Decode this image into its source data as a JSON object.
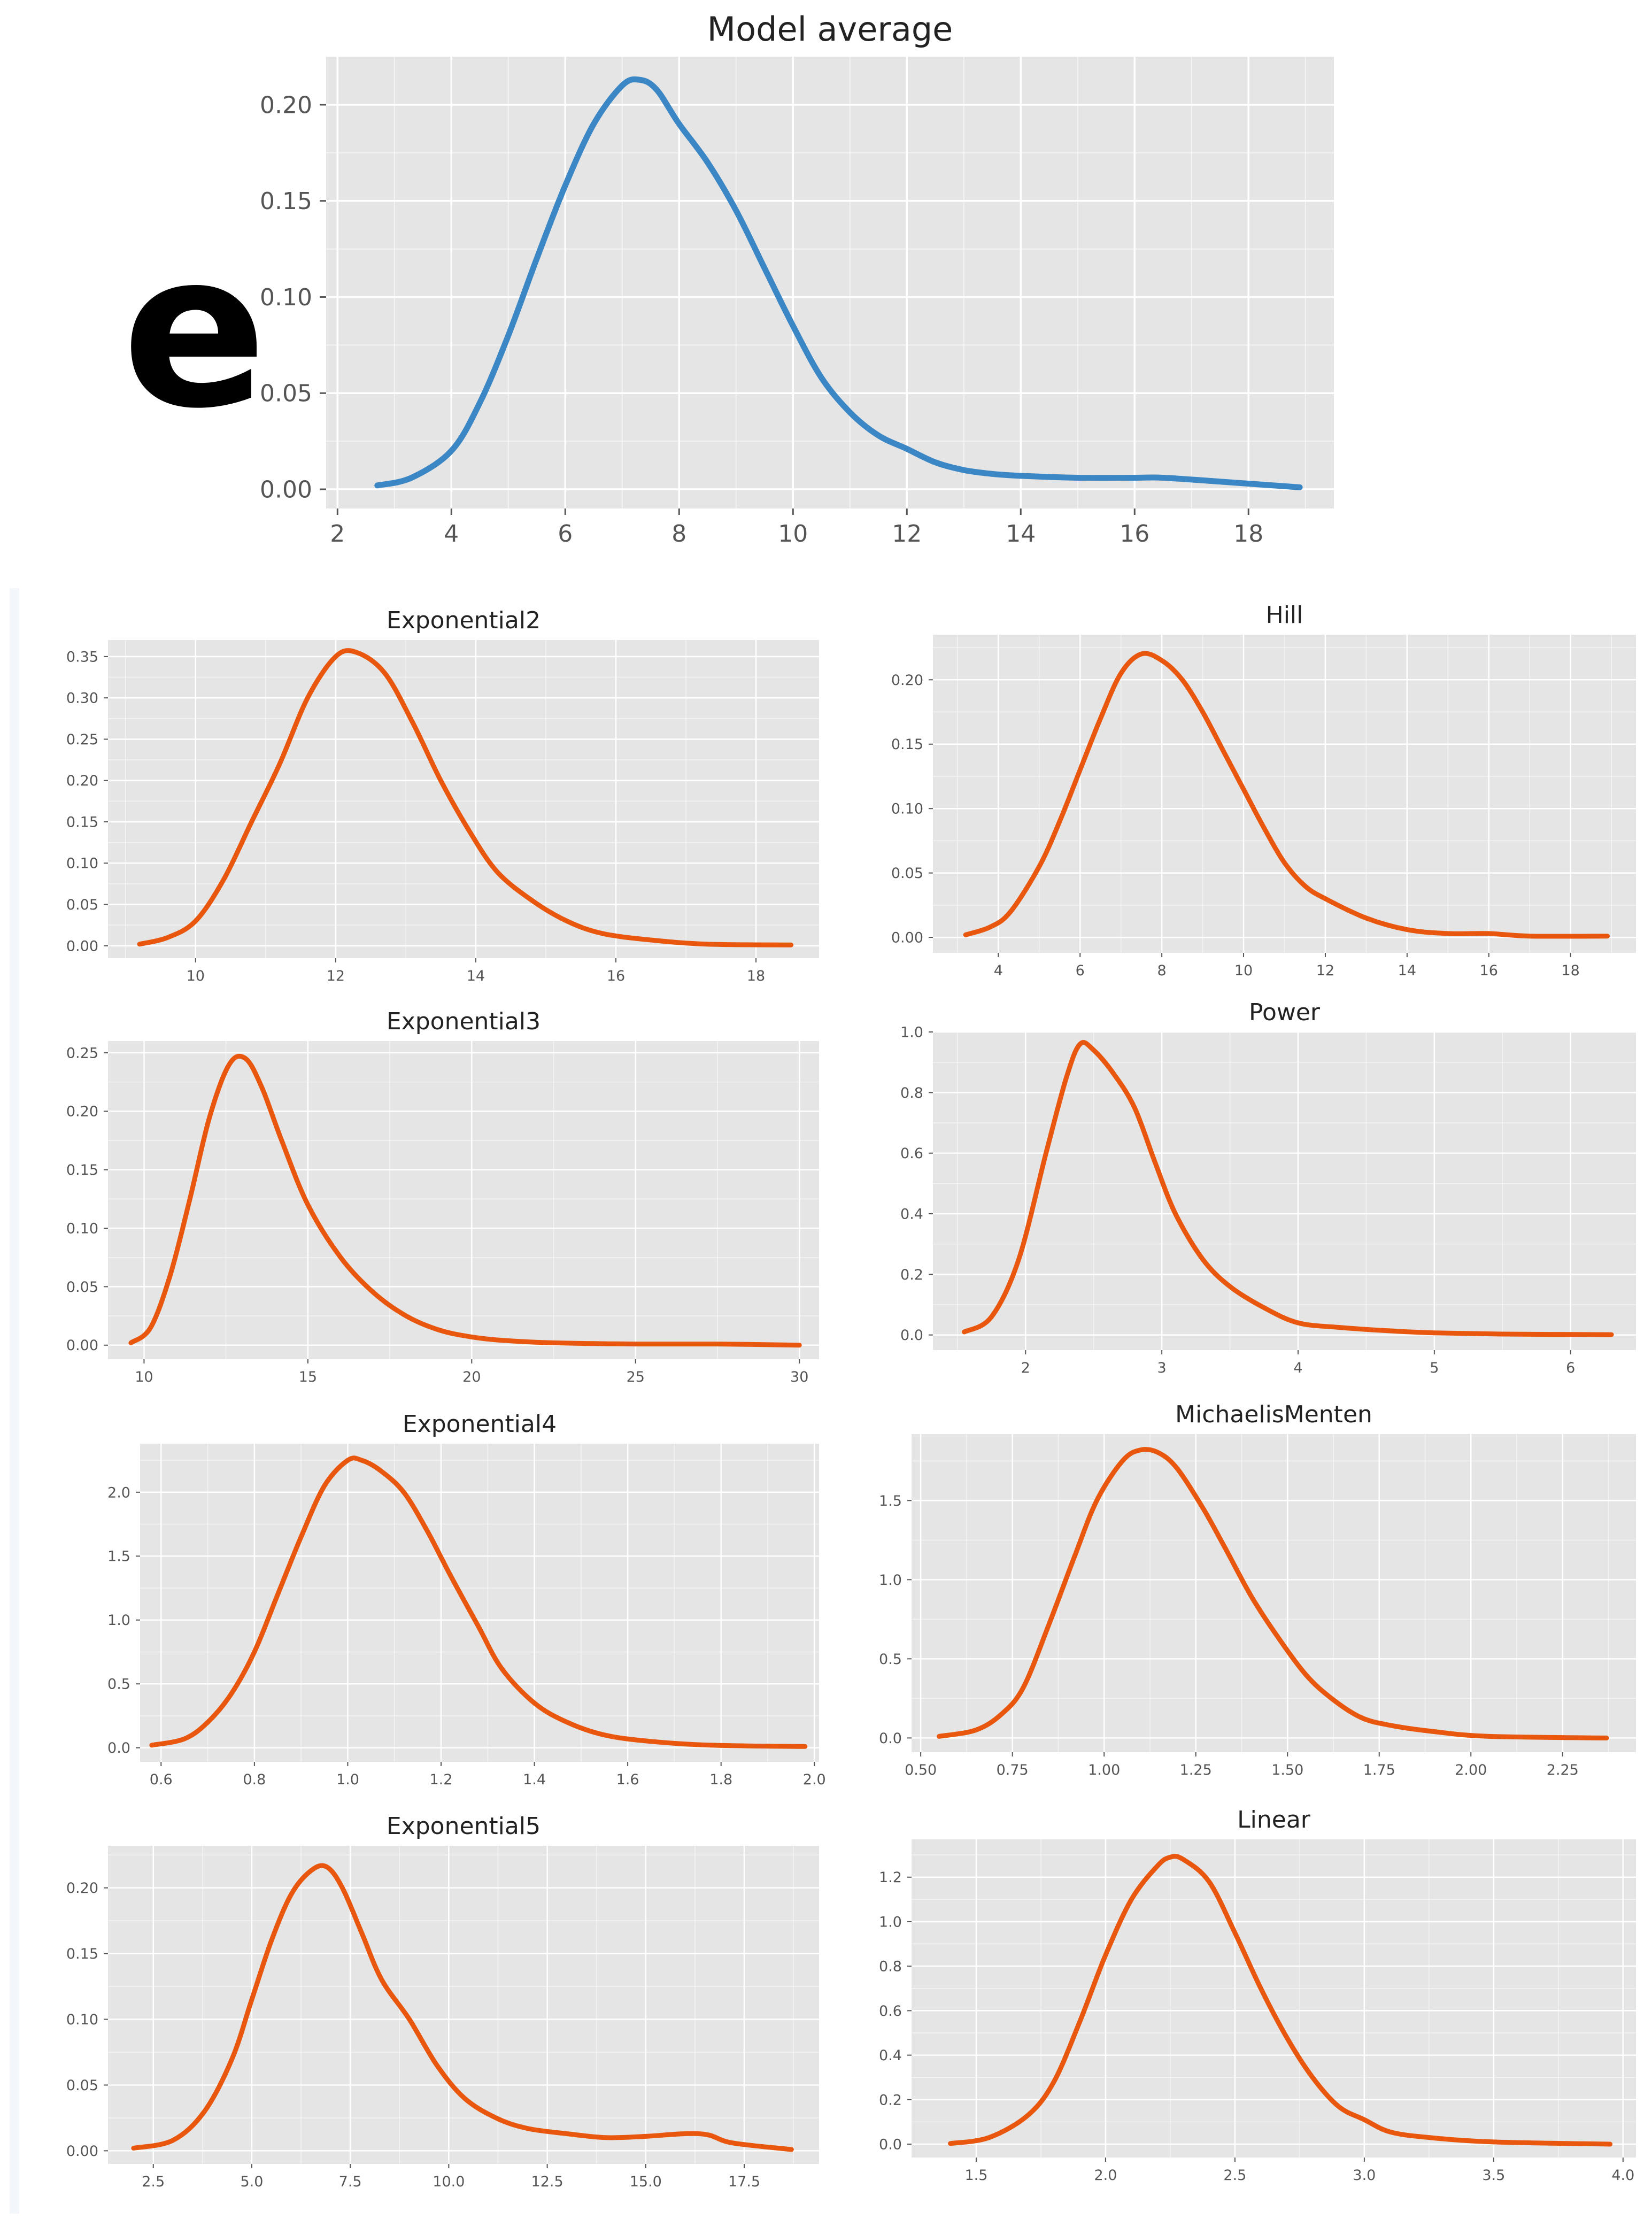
{
  "panel_label": "e",
  "colors": {
    "main_line": "#3b86c4",
    "sub_line": "#e8570d",
    "panel_bg": "#e5e5e5",
    "grid": "#ffffff"
  },
  "chart_data": [
    {
      "id": "model-average",
      "type": "line",
      "title": "Model average",
      "xlabel": "",
      "ylabel": "",
      "xlim": [
        1.8,
        19.5
      ],
      "ylim": [
        -0.01,
        0.225
      ],
      "xticks": [
        2,
        4,
        6,
        8,
        10,
        12,
        14,
        16,
        18
      ],
      "yticks": [
        0.0,
        0.05,
        0.1,
        0.15,
        0.2
      ],
      "yformat": 2,
      "xformat": 0,
      "x": [
        2.7,
        3.3,
        4,
        4.5,
        5,
        5.5,
        6,
        6.5,
        7,
        7.3,
        7.6,
        8,
        8.5,
        9,
        9.5,
        10,
        10.5,
        11,
        11.5,
        12,
        12.5,
        13,
        13.5,
        14,
        15,
        16,
        16.5,
        17.5,
        18.9
      ],
      "y": [
        0.002,
        0.006,
        0.02,
        0.045,
        0.08,
        0.12,
        0.158,
        0.19,
        0.21,
        0.213,
        0.208,
        0.19,
        0.17,
        0.145,
        0.115,
        0.085,
        0.058,
        0.04,
        0.028,
        0.021,
        0.014,
        0.01,
        0.008,
        0.007,
        0.006,
        0.006,
        0.006,
        0.004,
        0.001
      ]
    },
    {
      "id": "exponential2",
      "type": "line",
      "title": "Exponential2",
      "xlim": [
        8.75,
        18.9
      ],
      "ylim": [
        -0.015,
        0.37
      ],
      "xticks": [
        10,
        12,
        14,
        16,
        18
      ],
      "yticks": [
        0.0,
        0.05,
        0.1,
        0.15,
        0.2,
        0.25,
        0.3,
        0.35
      ],
      "yformat": 2,
      "xformat": 0,
      "x": [
        9.2,
        9.6,
        10,
        10.4,
        10.8,
        11.2,
        11.6,
        12,
        12.3,
        12.7,
        13.1,
        13.5,
        13.9,
        14.3,
        14.8,
        15.3,
        15.8,
        16.5,
        17.3,
        18.5
      ],
      "y": [
        0.002,
        0.01,
        0.03,
        0.08,
        0.15,
        0.22,
        0.3,
        0.35,
        0.355,
        0.33,
        0.27,
        0.2,
        0.14,
        0.09,
        0.055,
        0.03,
        0.015,
        0.007,
        0.002,
        0.001
      ]
    },
    {
      "id": "hill",
      "type": "line",
      "title": "Hill",
      "xlim": [
        2.4,
        19.6
      ],
      "ylim": [
        -0.012,
        0.235
      ],
      "xticks": [
        4,
        6,
        8,
        10,
        12,
        14,
        16,
        18
      ],
      "yticks": [
        0.0,
        0.05,
        0.1,
        0.15,
        0.2
      ],
      "yformat": 2,
      "xformat": 0,
      "x": [
        3.2,
        3.8,
        4.3,
        5,
        5.5,
        6,
        6.5,
        7,
        7.5,
        8,
        8.5,
        9,
        9.5,
        10,
        10.5,
        11,
        11.5,
        12,
        13,
        14,
        15,
        16,
        17,
        18.9
      ],
      "y": [
        0.002,
        0.008,
        0.02,
        0.055,
        0.09,
        0.13,
        0.17,
        0.205,
        0.22,
        0.215,
        0.2,
        0.175,
        0.145,
        0.115,
        0.085,
        0.058,
        0.04,
        0.03,
        0.015,
        0.006,
        0.003,
        0.003,
        0.001,
        0.001
      ]
    },
    {
      "id": "exponential3",
      "type": "line",
      "title": "Exponential3",
      "xlim": [
        8.9,
        30.6
      ],
      "ylim": [
        -0.012,
        0.26
      ],
      "xticks": [
        10,
        15,
        20,
        25,
        30
      ],
      "yticks": [
        0.0,
        0.05,
        0.1,
        0.15,
        0.2,
        0.25
      ],
      "yformat": 2,
      "xformat": 0,
      "x": [
        9.6,
        10.2,
        10.8,
        11.4,
        12,
        12.6,
        13.1,
        13.6,
        14.2,
        15,
        16,
        17,
        18,
        19,
        20,
        21,
        22.5,
        25,
        27.5,
        30
      ],
      "y": [
        0.002,
        0.015,
        0.06,
        0.125,
        0.195,
        0.24,
        0.245,
        0.22,
        0.175,
        0.12,
        0.075,
        0.045,
        0.025,
        0.013,
        0.007,
        0.004,
        0.002,
        0.001,
        0.001,
        0.0
      ]
    },
    {
      "id": "power",
      "type": "line",
      "title": "Power",
      "xlim": [
        1.32,
        6.48
      ],
      "ylim": [
        -0.05,
        1.0
      ],
      "xticks": [
        2,
        3,
        4,
        5,
        6
      ],
      "yticks": [
        0.0,
        0.2,
        0.4,
        0.6,
        0.8,
        1.0
      ],
      "yformat": 1,
      "xformat": 0,
      "x": [
        1.55,
        1.75,
        1.95,
        2.15,
        2.3,
        2.4,
        2.5,
        2.65,
        2.8,
        2.95,
        3.1,
        3.3,
        3.5,
        3.75,
        4,
        4.3,
        4.7,
        5,
        5.5,
        6.3
      ],
      "y": [
        0.01,
        0.06,
        0.25,
        0.6,
        0.85,
        0.96,
        0.94,
        0.86,
        0.75,
        0.57,
        0.4,
        0.25,
        0.16,
        0.09,
        0.04,
        0.025,
        0.013,
        0.007,
        0.003,
        0.001
      ]
    },
    {
      "id": "exponential4",
      "type": "line",
      "title": "Exponential4",
      "xlim": [
        0.555,
        2.01
      ],
      "ylim": [
        -0.11,
        2.38
      ],
      "xticks": [
        0.6,
        0.8,
        1.0,
        1.2,
        1.4,
        1.6,
        1.8,
        2.0
      ],
      "yticks": [
        0.0,
        0.5,
        1.0,
        1.5,
        2.0
      ],
      "yformat": 1,
      "xformat": 1,
      "x": [
        0.58,
        0.65,
        0.7,
        0.75,
        0.8,
        0.85,
        0.9,
        0.95,
        1.0,
        1.03,
        1.07,
        1.12,
        1.17,
        1.22,
        1.28,
        1.33,
        1.4,
        1.47,
        1.55,
        1.65,
        1.78,
        1.98
      ],
      "y": [
        0.02,
        0.07,
        0.2,
        0.42,
        0.75,
        1.2,
        1.65,
        2.05,
        2.25,
        2.25,
        2.17,
        2.0,
        1.7,
        1.35,
        0.95,
        0.62,
        0.35,
        0.2,
        0.1,
        0.05,
        0.02,
        0.01
      ]
    },
    {
      "id": "michaelis-menten",
      "type": "line",
      "title": "MichaelisMenten",
      "xlim": [
        0.475,
        2.45
      ],
      "ylim": [
        -0.09,
        1.92
      ],
      "xticks": [
        0.5,
        0.75,
        1.0,
        1.25,
        1.5,
        1.75,
        2.0,
        2.25
      ],
      "yticks": [
        0.0,
        0.5,
        1.0,
        1.5
      ],
      "yformat": 1,
      "xformat": 2,
      "x": [
        0.55,
        0.65,
        0.72,
        0.78,
        0.85,
        0.92,
        0.98,
        1.05,
        1.1,
        1.15,
        1.2,
        1.27,
        1.33,
        1.4,
        1.47,
        1.55,
        1.62,
        1.7,
        1.78,
        1.9,
        2.05,
        2.37
      ],
      "y": [
        0.01,
        0.05,
        0.15,
        0.32,
        0.72,
        1.15,
        1.5,
        1.75,
        1.82,
        1.8,
        1.7,
        1.45,
        1.2,
        0.9,
        0.65,
        0.4,
        0.25,
        0.13,
        0.08,
        0.04,
        0.01,
        0.0
      ]
    },
    {
      "id": "exponential5",
      "type": "line",
      "title": "Exponential5",
      "xlim": [
        1.35,
        19.4
      ],
      "ylim": [
        -0.01,
        0.232
      ],
      "xticks": [
        2.5,
        5.0,
        7.5,
        10.0,
        12.5,
        15.0,
        17.5
      ],
      "yticks": [
        0.0,
        0.05,
        0.1,
        0.15,
        0.2
      ],
      "yformat": 2,
      "xformat": 1,
      "x": [
        2,
        3,
        3.8,
        4.5,
        5,
        5.5,
        6,
        6.5,
        6.9,
        7.3,
        7.8,
        8.3,
        9,
        9.7,
        10.4,
        11.2,
        12,
        13,
        14,
        15,
        16,
        16.6,
        17.2,
        18.7
      ],
      "y": [
        0.002,
        0.008,
        0.03,
        0.07,
        0.115,
        0.16,
        0.195,
        0.213,
        0.216,
        0.2,
        0.165,
        0.13,
        0.1,
        0.065,
        0.04,
        0.025,
        0.017,
        0.013,
        0.01,
        0.011,
        0.013,
        0.012,
        0.006,
        0.001
      ]
    },
    {
      "id": "linear",
      "type": "line",
      "title": "Linear",
      "xlim": [
        1.25,
        4.05
      ],
      "ylim": [
        -0.06,
        1.37
      ],
      "xticks": [
        1.5,
        2.0,
        2.5,
        3.0,
        3.5,
        4.0
      ],
      "yticks": [
        0.0,
        0.2,
        0.4,
        0.6,
        0.8,
        1.0,
        1.2
      ],
      "yformat": 1,
      "xformat": 1,
      "x": [
        1.4,
        1.55,
        1.7,
        1.8,
        1.9,
        2.0,
        2.1,
        2.2,
        2.25,
        2.3,
        2.4,
        2.5,
        2.6,
        2.7,
        2.8,
        2.9,
        3.0,
        3.1,
        3.25,
        3.5,
        3.95
      ],
      "y": [
        0.003,
        0.03,
        0.13,
        0.28,
        0.55,
        0.85,
        1.1,
        1.25,
        1.29,
        1.28,
        1.18,
        0.95,
        0.7,
        0.48,
        0.3,
        0.17,
        0.11,
        0.055,
        0.03,
        0.01,
        0.0
      ]
    }
  ]
}
